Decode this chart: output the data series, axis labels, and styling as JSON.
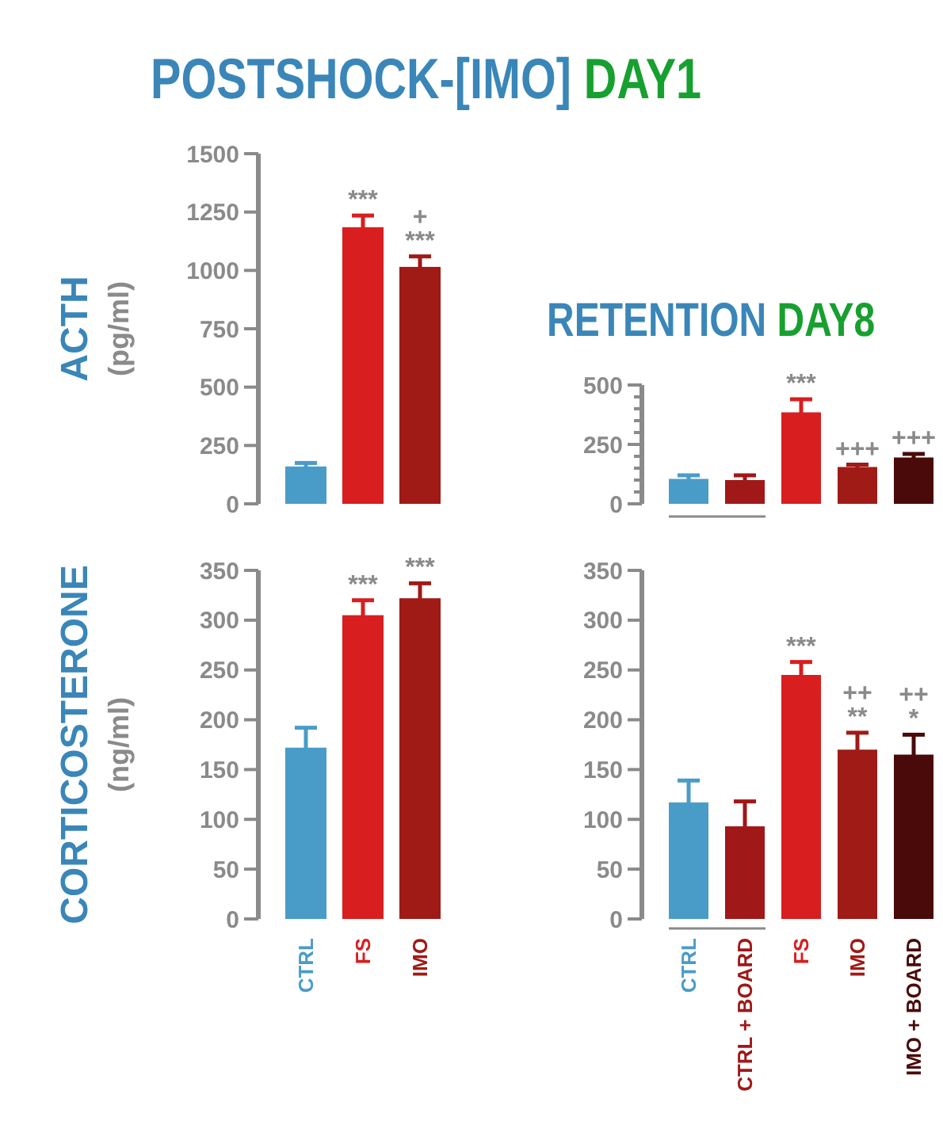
{
  "chart_data": [
    {
      "type": "bar",
      "title": "POSTSHOCK-[IMO] DAY1",
      "ylabel": "ACTH (pg/ml)",
      "categories": [
        "CTRL",
        "FS",
        "IMO"
      ],
      "values": [
        160,
        1185,
        1015
      ],
      "errors": [
        15,
        50,
        45
      ],
      "colors": [
        "#4a9cc8",
        "#d81e1e",
        "#a01a16"
      ],
      "ylim": [
        0,
        1500
      ],
      "yticks": [
        0,
        250,
        500,
        750,
        1000,
        1250,
        1500
      ],
      "tick_labels": "y",
      "grid": false,
      "annotations": [
        {
          "text": "***",
          "x": "FS",
          "y": 1185
        },
        {
          "text": "***",
          "x": "IMO",
          "y": 1015
        },
        {
          "text": "+",
          "x": "IMO",
          "y": 1015
        }
      ]
    },
    {
      "type": "bar",
      "title": "RETENTION DAY8",
      "categories": [
        "CTRL",
        "CTRL + BOARD",
        "FS",
        "IMO",
        "IMO + BOARD"
      ],
      "values": [
        105,
        100,
        385,
        155,
        195
      ],
      "errors": [
        15,
        20,
        55,
        10,
        15
      ],
      "colors": [
        "#4a9cc8",
        "#a01818",
        "#d81e1e",
        "#a01a16",
        "#4a0a0a"
      ],
      "ylim": [
        0,
        500
      ],
      "yticks": [
        0,
        {
          "value": 50,
          "label": null
        },
        {
          "value": 100,
          "label": null
        },
        {
          "value": 150,
          "label": null
        },
        {
          "value": 200,
          "label": null
        },
        250,
        {
          "value": 300,
          "label": null
        },
        {
          "value": 350,
          "label": null
        },
        {
          "value": 400,
          "label": null
        },
        {
          "value": 450,
          "label": null
        },
        500
      ],
      "tick_labels": "y",
      "grid": false,
      "annotations": [
        {
          "text": "***",
          "x": "FS",
          "y": 385
        },
        {
          "text": "+++",
          "x": "IMO",
          "y": 155
        },
        {
          "text": "+++",
          "x": "IMO + BOARD",
          "y": 195
        }
      ]
    },
    {
      "type": "bar",
      "ylabel": "CORTICOSTERONE (ng/ml)",
      "categories": [
        "CTRL",
        "FS",
        "IMO"
      ],
      "values": [
        172,
        305,
        322
      ],
      "errors": [
        20,
        15,
        15
      ],
      "colors": [
        "#4a9cc8",
        "#d81e1e",
        "#a01a16"
      ],
      "ylim": [
        0,
        350
      ],
      "yticks": [
        0,
        50,
        100,
        150,
        200,
        250,
        300,
        350
      ],
      "grid": false,
      "annotations": [
        {
          "text": "***",
          "x": "FS",
          "y": 305
        },
        {
          "text": "***",
          "x": "IMO",
          "y": 322
        }
      ]
    },
    {
      "type": "bar",
      "categories": [
        "CTRL",
        "CTRL + BOARD",
        "FS",
        "IMO",
        "IMO + BOARD"
      ],
      "values": [
        117,
        93,
        245,
        170,
        165
      ],
      "errors": [
        22,
        25,
        13,
        17,
        20
      ],
      "colors": [
        "#4a9cc8",
        "#a01818",
        "#d81e1e",
        "#a01a16",
        "#4a0a0a"
      ],
      "ylim": [
        0,
        350
      ],
      "yticks": [
        0,
        50,
        100,
        150,
        200,
        250,
        300,
        350
      ],
      "grid": false,
      "annotations": [
        {
          "text": "***",
          "x": "FS",
          "y": 245
        },
        {
          "text": "**",
          "x": "IMO",
          "y": 170
        },
        {
          "text": "++",
          "x": "IMO",
          "y": 170
        },
        {
          "text": "*",
          "x": "IMO + BOARD",
          "y": 165
        },
        {
          "text": "++",
          "x": "IMO + BOARD",
          "y": 165
        }
      ]
    }
  ]
}
